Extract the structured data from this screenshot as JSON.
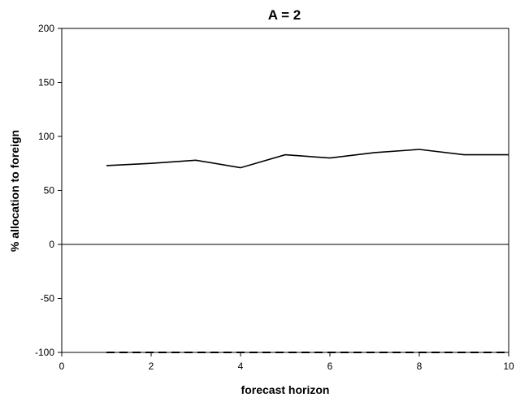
{
  "chart_data": {
    "type": "line",
    "title": "A = 2",
    "xlabel": "forecast horizon",
    "ylabel": "% allocation to foreign",
    "xlim": [
      0,
      10
    ],
    "ylim": [
      -100,
      200
    ],
    "x_ticks": [
      0,
      2,
      4,
      6,
      8,
      10
    ],
    "y_ticks": [
      -100,
      -50,
      0,
      50,
      100,
      150,
      200
    ],
    "grid": false,
    "legend": "none",
    "zero_line": true,
    "series": [
      {
        "style": "solid",
        "color": "#000000",
        "x": [
          1,
          2,
          3,
          4,
          5,
          6,
          7,
          8,
          9,
          10
        ],
        "y": [
          73,
          75,
          78,
          71,
          83,
          80,
          85,
          88,
          83,
          83
        ]
      },
      {
        "style": "dashed",
        "color": "#000000",
        "x": [
          1,
          2,
          3,
          4,
          5,
          6,
          7,
          8,
          9,
          10
        ],
        "y": [
          -100,
          -100,
          -100,
          -100,
          -100,
          -100,
          -100,
          -100,
          -100,
          -100
        ]
      }
    ]
  }
}
